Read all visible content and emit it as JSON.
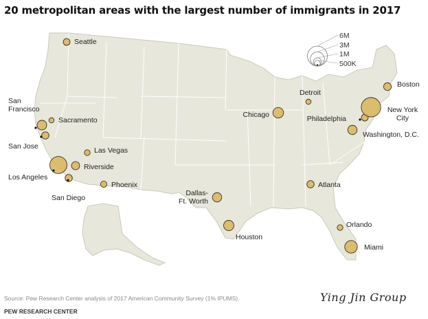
{
  "title": "20 metropolitan areas with the largest number of immigrants in 2017",
  "legend": {
    "items": [
      {
        "label": "6M",
        "millions": 6
      },
      {
        "label": "3M",
        "millions": 3
      },
      {
        "label": "1M",
        "millions": 1
      },
      {
        "label": "500K",
        "millions": 0.5
      }
    ]
  },
  "cities": [
    {
      "name": "Seattle",
      "label": "Seattle",
      "immigrants_millions": 0.7
    },
    {
      "name": "San Francisco",
      "label": "San\nFrancisco",
      "immigrants_millions": 1.4
    },
    {
      "name": "Sacramento",
      "label": "Sacramento",
      "immigrants_millions": 0.4
    },
    {
      "name": "San Jose",
      "label": "San Jose",
      "immigrants_millions": 0.8
    },
    {
      "name": "Las Vegas",
      "label": "Las Vegas",
      "immigrants_millions": 0.5
    },
    {
      "name": "Los Angeles",
      "label": "Los Angeles",
      "immigrants_millions": 4.4
    },
    {
      "name": "Riverside",
      "label": "Riverside",
      "immigrants_millions": 1.0
    },
    {
      "name": "San Diego",
      "label": "San Diego",
      "immigrants_millions": 0.8
    },
    {
      "name": "Phoenix",
      "label": "Phoenix",
      "immigrants_millions": 0.6
    },
    {
      "name": "Dallas-Ft. Worth",
      "label": "Dallas-\nFt. Worth",
      "immigrants_millions": 1.3
    },
    {
      "name": "Houston",
      "label": "Houston",
      "immigrants_millions": 1.6
    },
    {
      "name": "Chicago",
      "label": "Chicago",
      "immigrants_millions": 1.7
    },
    {
      "name": "Detroit",
      "label": "Detroit",
      "immigrants_millions": 0.4
    },
    {
      "name": "Atlanta",
      "label": "Atlanta",
      "immigrants_millions": 0.8
    },
    {
      "name": "Orlando",
      "label": "Orlando",
      "immigrants_millions": 0.5
    },
    {
      "name": "Miami",
      "label": "Miami",
      "immigrants_millions": 2.4
    },
    {
      "name": "Washington, D.C.",
      "label": "Washington, D.C.",
      "immigrants_millions": 1.3
    },
    {
      "name": "Philadelphia",
      "label": "Philadelphia",
      "immigrants_millions": 0.7
    },
    {
      "name": "New York City",
      "label": "New York\nCity",
      "immigrants_millions": 5.7
    },
    {
      "name": "Boston",
      "label": "Boston",
      "immigrants_millions": 0.9
    }
  ],
  "colors": {
    "land": "#e7e7db",
    "state_border": "#ffffff",
    "bubble_fill": "#d9b45a",
    "bubble_stroke": "#3a3220"
  },
  "source": "Source: Pew Research Center analysis of 2017 American Community Survey (1% IPUMS).",
  "org": "PEW RESEARCH CENTER",
  "watermark": "Ying Jin Group"
}
